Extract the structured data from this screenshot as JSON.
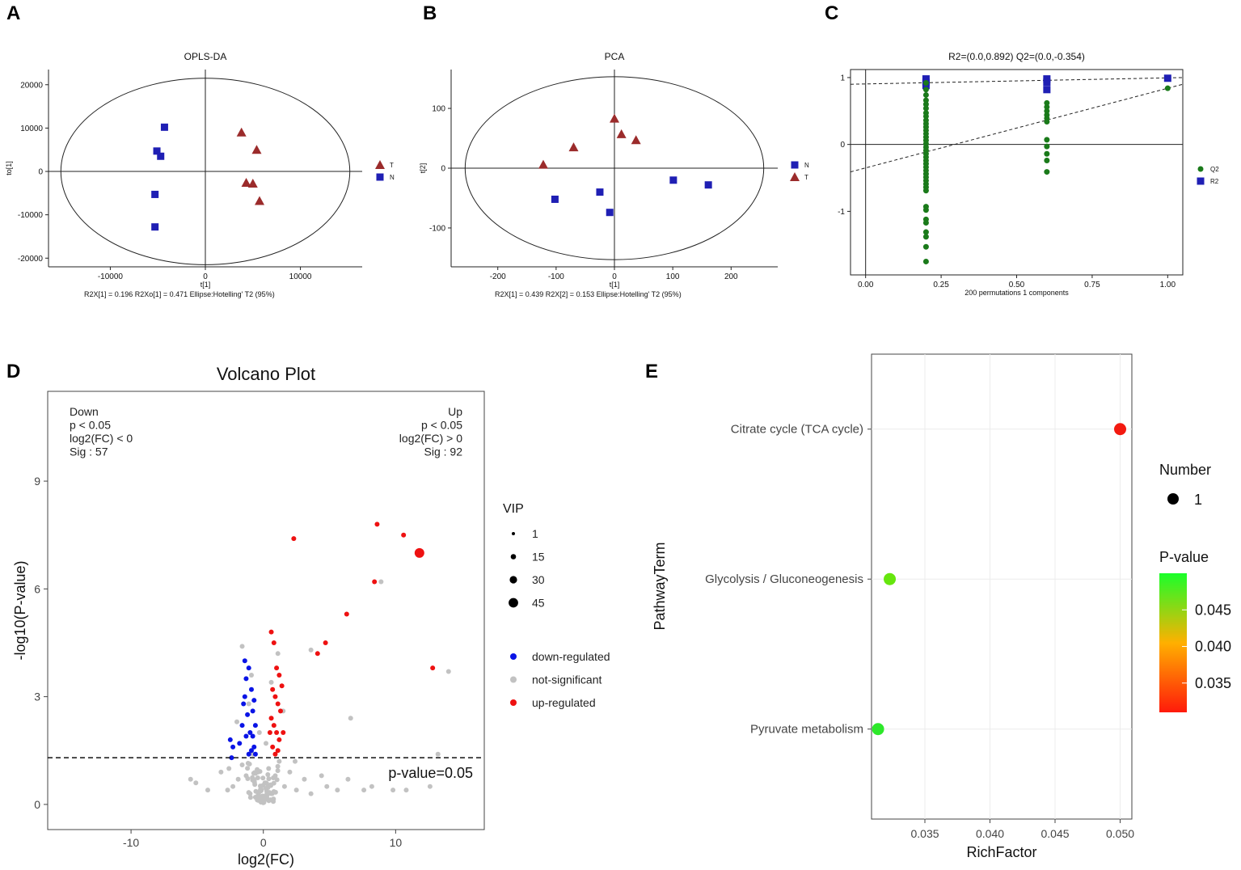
{
  "panel_labels": [
    "A",
    "B",
    "C",
    "D",
    "E"
  ],
  "chart_data": [
    {
      "id": "A",
      "type": "scatter",
      "title": "OPLS-DA",
      "xlabel": "t[1]",
      "ylabel": "to[1]",
      "xlim": [
        -16500,
        16500
      ],
      "ylim": [
        -22000,
        23500
      ],
      "xticks": [
        -10000,
        0,
        10000
      ],
      "xtick_labels": [
        "-10000",
        "0",
        "10000"
      ],
      "yticks": [
        20000,
        10000,
        0,
        -10000,
        -20000
      ],
      "ytick_labels": [
        "20000",
        "10000",
        "0",
        "-10000",
        "-20000"
      ],
      "footer": "R2X[1]  =  0.196     R2Xo[1]  =  0.471     Ellipse:Hotelling' T2 (95%)",
      "ellipse": {
        "cx": 0,
        "cy": 0,
        "rx": 15200,
        "ry": 21500
      },
      "legend": [
        {
          "name": "T",
          "marker": "triangle",
          "color": "#9b2b2b"
        },
        {
          "name": "N",
          "marker": "square",
          "color": "#1f1fb4"
        }
      ],
      "series": [
        {
          "name": "N",
          "marker": "square",
          "color": "#1f1fb4",
          "points": [
            [
              -4300,
              10200
            ],
            [
              -5100,
              4700
            ],
            [
              -4700,
              3500
            ],
            [
              -5300,
              -5300
            ],
            [
              -5300,
              -12800
            ]
          ]
        },
        {
          "name": "T",
          "marker": "triangle",
          "color": "#9b2b2b",
          "points": [
            [
              3800,
              9000
            ],
            [
              5400,
              5000
            ],
            [
              4300,
              -2600
            ],
            [
              5000,
              -2800
            ],
            [
              5700,
              -6800
            ]
          ]
        }
      ]
    },
    {
      "id": "B",
      "type": "scatter",
      "title": "PCA",
      "xlabel": "t[1]",
      "ylabel": "t[2]",
      "xlim": [
        -280,
        280
      ],
      "ylim": [
        -165,
        165
      ],
      "xticks": [
        -200,
        -100,
        0,
        100,
        200
      ],
      "xtick_labels": [
        "-200",
        "-100",
        "0",
        "100",
        "200"
      ],
      "yticks": [
        100,
        0,
        -100
      ],
      "ytick_labels": [
        "100",
        "0",
        "-100"
      ],
      "footer": "R2X[1]  =  0.439     R2X[2]  =  0.153     Ellipse:Hotelling' T2 (95%)",
      "ellipse": {
        "cx": 0,
        "cy": 0,
        "rx": 256,
        "ry": 153
      },
      "legend": [
        {
          "name": "N",
          "marker": "square",
          "color": "#1f1fb4"
        },
        {
          "name": "T",
          "marker": "triangle",
          "color": "#9b2b2b"
        }
      ],
      "series": [
        {
          "name": "N",
          "marker": "square",
          "color": "#1f1fb4",
          "points": [
            [
              -102,
              -52
            ],
            [
              -25,
              -40
            ],
            [
              -8,
              -74
            ],
            [
              101,
              -20
            ],
            [
              161,
              -28
            ]
          ]
        },
        {
          "name": "T",
          "marker": "triangle",
          "color": "#9b2b2b",
          "points": [
            [
              0,
              83
            ],
            [
              12,
              57
            ],
            [
              37,
              47
            ],
            [
              -70,
              35
            ],
            [
              -122,
              6
            ]
          ]
        }
      ]
    },
    {
      "id": "C",
      "type": "scatter",
      "title": "R2=(0.0,0.892)    Q2=(0.0,-0.354)",
      "xlabel": "200 permutations 1 components",
      "ylabel": "",
      "xlim": [
        -0.05,
        1.05
      ],
      "ylim": [
        -1.95,
        1.12
      ],
      "xticks": [
        0,
        0.25,
        0.5,
        0.75,
        1.0
      ],
      "xtick_labels": [
        "0.00",
        "0.25",
        "0.50",
        "0.75",
        "1.00"
      ],
      "yticks": [
        1,
        0,
        -1
      ],
      "ytick_labels": [
        "1",
        "0",
        "-1"
      ],
      "legend": [
        {
          "name": "Q2",
          "marker": "circle",
          "color": "#1a7a1a"
        },
        {
          "name": "R2",
          "marker": "square",
          "color": "#1f1fb4"
        }
      ],
      "lines": [
        {
          "name": "R2 regression",
          "from": [
            -0.05,
            0.9
          ],
          "to": [
            1.05,
            1.0
          ]
        },
        {
          "name": "Q2 regression",
          "from": [
            -0.05,
            -0.41
          ],
          "to": [
            1.05,
            0.9
          ]
        }
      ],
      "series": [
        {
          "name": "R2",
          "marker": "square",
          "color": "#1f1fb4",
          "points": [
            [
              0.2,
              0.98
            ],
            [
              0.2,
              0.93
            ],
            [
              0.2,
              0.88
            ],
            [
              0.6,
              0.98
            ],
            [
              0.6,
              0.93
            ],
            [
              0.6,
              0.82
            ],
            [
              1.0,
              0.99
            ]
          ]
        },
        {
          "name": "Q2",
          "marker": "circle",
          "color": "#1a7a1a",
          "points": [
            [
              0.2,
              0.92
            ],
            [
              0.2,
              0.82
            ],
            [
              0.2,
              0.74
            ],
            [
              0.2,
              0.66
            ],
            [
              0.2,
              0.6
            ],
            [
              0.2,
              0.54
            ],
            [
              0.2,
              0.47
            ],
            [
              0.2,
              0.42
            ],
            [
              0.2,
              0.36
            ],
            [
              0.2,
              0.31
            ],
            [
              0.2,
              0.26
            ],
            [
              0.2,
              0.21
            ],
            [
              0.2,
              0.16
            ],
            [
              0.2,
              0.11
            ],
            [
              0.2,
              0.06
            ],
            [
              0.2,
              0.01
            ],
            [
              0.2,
              -0.04
            ],
            [
              0.2,
              -0.09
            ],
            [
              0.2,
              -0.14
            ],
            [
              0.2,
              -0.19
            ],
            [
              0.2,
              -0.24
            ],
            [
              0.2,
              -0.29
            ],
            [
              0.2,
              -0.34
            ],
            [
              0.2,
              -0.39
            ],
            [
              0.2,
              -0.44
            ],
            [
              0.2,
              -0.49
            ],
            [
              0.2,
              -0.54
            ],
            [
              0.2,
              -0.59
            ],
            [
              0.2,
              -0.64
            ],
            [
              0.2,
              -0.69
            ],
            [
              0.2,
              -0.93
            ],
            [
              0.2,
              -0.98
            ],
            [
              0.2,
              -1.12
            ],
            [
              0.2,
              -1.17
            ],
            [
              0.2,
              -1.31
            ],
            [
              0.2,
              -1.38
            ],
            [
              0.2,
              -1.53
            ],
            [
              0.2,
              -1.75
            ],
            [
              0.6,
              0.62
            ],
            [
              0.6,
              0.56
            ],
            [
              0.6,
              0.5
            ],
            [
              0.6,
              0.44
            ],
            [
              0.6,
              0.39
            ],
            [
              0.6,
              0.34
            ],
            [
              0.6,
              0.07
            ],
            [
              0.6,
              -0.03
            ],
            [
              0.6,
              -0.14
            ],
            [
              0.6,
              -0.24
            ],
            [
              0.6,
              -0.41
            ],
            [
              1.0,
              0.84
            ]
          ]
        }
      ]
    },
    {
      "id": "D",
      "type": "scatter",
      "title": "Volcano Plot",
      "xlabel": "log2(FC)",
      "ylabel": "-log10(P-value)",
      "xlim": [
        -16.3,
        16.7
      ],
      "ylim": [
        -0.7,
        11.5
      ],
      "xticks": [
        -10,
        0,
        10
      ],
      "xtick_labels": [
        "-10",
        "0",
        "10"
      ],
      "yticks": [
        0,
        3,
        6,
        9
      ],
      "ytick_labels": [
        "0",
        "3",
        "6",
        "9"
      ],
      "threshold": {
        "y": 1.3,
        "label": "p-value=0.05"
      },
      "annotations": {
        "down": [
          "Down",
          "p < 0.05",
          "log2(FC) < 0",
          "Sig : 57"
        ],
        "up": [
          "Up",
          "p < 0.05",
          "log2(FC) > 0",
          "Sig : 92"
        ]
      },
      "vip_legend": {
        "title": "VIP",
        "values": [
          1,
          15,
          30,
          45
        ]
      },
      "legend": [
        {
          "name": "down-regulated",
          "color": "#0a14e6"
        },
        {
          "name": "not-significant",
          "color": "#c2c2c2"
        },
        {
          "name": "up-regulated",
          "color": "#ee1111"
        }
      ],
      "series": [
        {
          "name": "not-significant",
          "color": "#c2c2c2",
          "points": [
            [
              -5.5,
              0.7
            ],
            [
              -5.1,
              0.6
            ],
            [
              -4.2,
              0.4
            ],
            [
              -3.2,
              0.9
            ],
            [
              -2.7,
              0.4
            ],
            [
              -2.3,
              0.5
            ],
            [
              -1.9,
              0.7
            ],
            [
              -1.6,
              1.1
            ],
            [
              -1.3,
              0.8
            ],
            [
              -1.0,
              0.3
            ],
            [
              -0.8,
              1.4
            ],
            [
              -0.6,
              0.2
            ],
            [
              -0.4,
              0.9
            ],
            [
              -0.2,
              0.5
            ],
            [
              0.0,
              0.1
            ],
            [
              0.2,
              0.6
            ],
            [
              0.4,
              1.0
            ],
            [
              0.6,
              0.3
            ],
            [
              0.9,
              0.8
            ],
            [
              1.2,
              1.2
            ],
            [
              1.6,
              0.5
            ],
            [
              2.0,
              0.9
            ],
            [
              2.5,
              0.4
            ],
            [
              3.1,
              0.7
            ],
            [
              3.6,
              0.3
            ],
            [
              4.4,
              0.8
            ],
            [
              4.8,
              0.5
            ],
            [
              5.6,
              0.4
            ],
            [
              6.4,
              0.7
            ],
            [
              7.6,
              0.4
            ],
            [
              8.2,
              0.5
            ],
            [
              9.8,
              0.4
            ],
            [
              10.8,
              0.4
            ],
            [
              13.2,
              1.4
            ],
            [
              12.6,
              0.5
            ],
            [
              -1.6,
              4.4
            ],
            [
              -1.1,
              2.8
            ],
            [
              -0.9,
              3.6
            ],
            [
              1.1,
              4.2
            ],
            [
              0.6,
              3.4
            ],
            [
              1.5,
              2.6
            ],
            [
              3.6,
              4.3
            ],
            [
              6.6,
              2.4
            ],
            [
              8.9,
              6.2
            ],
            [
              14.0,
              3.7
            ],
            [
              -2.0,
              2.3
            ],
            [
              0.2,
              1.7
            ],
            [
              -0.3,
              2.0
            ],
            [
              2.4,
              1.2
            ],
            [
              -2.6,
              1.0
            ]
          ]
        },
        {
          "name": "down-regulated",
          "color": "#0a14e6",
          "points": [
            [
              -2.5,
              1.8
            ],
            [
              -2.3,
              1.6
            ],
            [
              -2.4,
              1.3
            ],
            [
              -1.6,
              2.2
            ],
            [
              -1.5,
              2.8
            ],
            [
              -1.4,
              3.0
            ],
            [
              -1.3,
              3.5
            ],
            [
              -1.2,
              2.5
            ],
            [
              -1.1,
              3.8
            ],
            [
              -1.0,
              2.0
            ],
            [
              -0.9,
              3.2
            ],
            [
              -0.8,
              2.6
            ],
            [
              -0.7,
              1.6
            ],
            [
              -0.6,
              2.2
            ],
            [
              -1.1,
              1.4
            ],
            [
              -0.9,
              1.5
            ],
            [
              -0.7,
              2.9
            ],
            [
              -1.3,
              1.9
            ],
            [
              -1.8,
              1.7
            ],
            [
              -1.4,
              4.0
            ],
            [
              -0.8,
              1.9
            ],
            [
              -0.6,
              1.4
            ]
          ]
        },
        {
          "name": "up-regulated",
          "color": "#ee1111",
          "points": [
            [
              0.6,
              4.8
            ],
            [
              0.8,
              4.5
            ],
            [
              1.0,
              3.8
            ],
            [
              1.2,
              3.6
            ],
            [
              0.7,
              3.2
            ],
            [
              0.9,
              3.0
            ],
            [
              1.1,
              2.8
            ],
            [
              1.3,
              2.6
            ],
            [
              0.6,
              2.4
            ],
            [
              0.8,
              2.2
            ],
            [
              1.0,
              2.0
            ],
            [
              1.2,
              1.8
            ],
            [
              0.7,
              1.6
            ],
            [
              0.9,
              1.4
            ],
            [
              1.1,
              1.5
            ],
            [
              1.4,
              3.3
            ],
            [
              0.5,
              2.0
            ],
            [
              1.5,
              2.0
            ],
            [
              2.3,
              7.4
            ],
            [
              4.1,
              4.2
            ],
            [
              4.7,
              4.5
            ],
            [
              6.3,
              5.3
            ],
            [
              8.4,
              6.2
            ],
            [
              8.6,
              7.8
            ],
            [
              10.6,
              7.5
            ],
            [
              12.8,
              3.8
            ]
          ]
        },
        {
          "name": "highlight",
          "color": "#ee1111",
          "r": 6,
          "points": [
            [
              11.8,
              7.0
            ]
          ]
        }
      ]
    },
    {
      "id": "E",
      "type": "scatter",
      "title": "",
      "xlabel": "RichFactor",
      "ylabel": "PathwayTerm",
      "xlim": [
        0.0309,
        0.0509
      ],
      "ylim": [
        0.4,
        3.5
      ],
      "xticks": [
        0.035,
        0.04,
        0.045,
        0.05
      ],
      "xtick_labels": [
        "0.035",
        "0.040",
        "0.045",
        "0.050"
      ],
      "categories": [
        "Pyruvate metabolism",
        "Glycolysis / Gluconeogenesis",
        "Citrate cycle (TCA cycle)"
      ],
      "points": [
        {
          "pathway": "Citrate cycle (TCA cycle)",
          "rich_factor": 0.05,
          "number": 1,
          "p_value": 0.031,
          "color": "#f31a10"
        },
        {
          "pathway": "Glycolysis / Gluconeogenesis",
          "rich_factor": 0.0323,
          "number": 1,
          "p_value": 0.048,
          "color": "#66e60e"
        },
        {
          "pathway": "Pyruvate metabolism",
          "rich_factor": 0.0314,
          "number": 1,
          "p_value": 0.05,
          "color": "#2de82a"
        }
      ],
      "size_legend": {
        "title": "Number",
        "value": "1"
      },
      "color_legend": {
        "title": "P-value",
        "ticks": [
          "0.045",
          "0.040",
          "0.035"
        ],
        "tick_values": [
          0.045,
          0.04,
          0.035
        ],
        "range": [
          0.031,
          0.05
        ],
        "low_color": "#ff1a0a",
        "mid_color": "#ffb000",
        "high_color": "#1aff2a"
      }
    }
  ]
}
